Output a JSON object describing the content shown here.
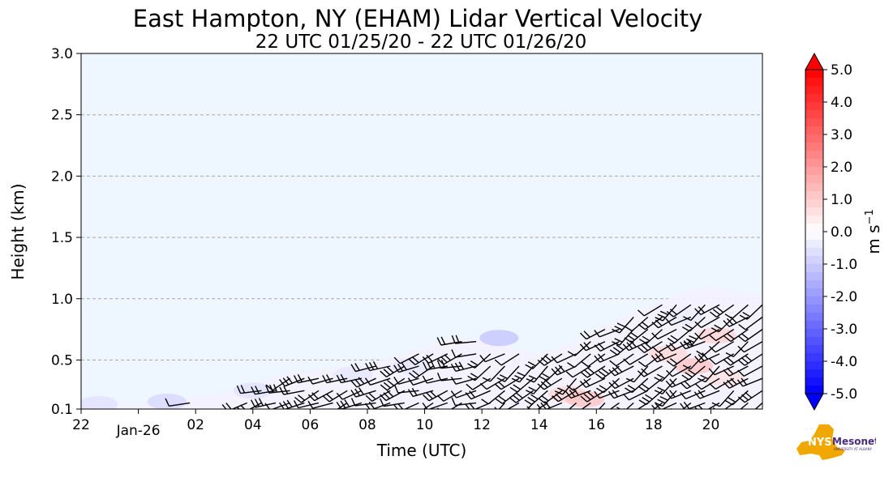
{
  "chart_data": {
    "type": "heatmap",
    "title": "East Hampton, NY (EHAM) Lidar Vertical Velocity",
    "subtitle": "22 UTC 01/25/20 - 22 UTC 01/26/20",
    "xlabel": "Time (UTC)",
    "ylabel": "Height (km)",
    "x_ticks": [
      {
        "hour": 0,
        "label": "22"
      },
      {
        "hour": 2,
        "label": "Jan-26",
        "offset_label": true
      },
      {
        "hour": 4,
        "label": "02"
      },
      {
        "hour": 6,
        "label": "04"
      },
      {
        "hour": 8,
        "label": "06"
      },
      {
        "hour": 10,
        "label": "08"
      },
      {
        "hour": 12,
        "label": "10"
      },
      {
        "hour": 14,
        "label": "12"
      },
      {
        "hour": 16,
        "label": "14"
      },
      {
        "hour": 18,
        "label": "16"
      },
      {
        "hour": 20,
        "label": "18"
      },
      {
        "hour": 22,
        "label": "20"
      }
    ],
    "xlim": [
      0,
      23.8
    ],
    "y_ticks": [
      {
        "value": 0.1,
        "label": "0.1"
      },
      {
        "value": 0.5,
        "label": "0.5"
      },
      {
        "value": 1.0,
        "label": "1.0"
      },
      {
        "value": 1.5,
        "label": "1.5"
      },
      {
        "value": 2.0,
        "label": "2.0"
      },
      {
        "value": 2.5,
        "label": "2.5"
      },
      {
        "value": 3.0,
        "label": "3.0"
      }
    ],
    "ylim": [
      0.1,
      3.0
    ],
    "grid": true,
    "colorbar": {
      "label": "m s",
      "label_sup": "−1",
      "range": [
        -5.0,
        5.0
      ],
      "levels": 40,
      "ticks": [
        "5.0",
        "4.0",
        "3.0",
        "2.0",
        "1.0",
        "0.0",
        "-1.0",
        "-2.0",
        "-3.0",
        "-4.0",
        "-5.0"
      ],
      "min_color": "#0000ff",
      "mid_color": "#ffffff",
      "max_color": "#ff0000"
    },
    "background_color": "#eef6ff",
    "data_top_profile": [
      [
        0.0,
        0.16
      ],
      [
        1.0,
        0.15
      ],
      [
        2.0,
        0.14
      ],
      [
        3.0,
        0.17
      ],
      [
        4.0,
        0.2
      ],
      [
        5.0,
        0.23
      ],
      [
        6.0,
        0.3
      ],
      [
        7.0,
        0.38
      ],
      [
        8.0,
        0.42
      ],
      [
        9.0,
        0.44
      ],
      [
        10.0,
        0.47
      ],
      [
        11.0,
        0.53
      ],
      [
        12.0,
        0.6
      ],
      [
        13.0,
        0.68
      ],
      [
        14.0,
        0.68
      ],
      [
        15.0,
        0.6
      ],
      [
        16.0,
        0.55
      ],
      [
        17.0,
        0.62
      ],
      [
        18.0,
        0.75
      ],
      [
        19.0,
        0.85
      ],
      [
        20.0,
        0.95
      ],
      [
        21.0,
        1.05
      ],
      [
        22.0,
        1.1
      ],
      [
        23.0,
        1.05
      ],
      [
        23.8,
        1.02
      ]
    ],
    "velocity_blobs": [
      {
        "t": 0.6,
        "h": 0.14,
        "v": -0.6
      },
      {
        "t": 3.0,
        "h": 0.16,
        "v": -0.8
      },
      {
        "t": 6.0,
        "h": 0.25,
        "v": -0.6
      },
      {
        "t": 9.5,
        "h": 0.38,
        "v": -0.5
      },
      {
        "t": 11.5,
        "h": 0.45,
        "v": -0.5
      },
      {
        "t": 14.6,
        "h": 0.68,
        "v": -1.2
      },
      {
        "t": 17.0,
        "h": 0.22,
        "v": 0.8
      },
      {
        "t": 17.6,
        "h": 0.18,
        "v": 1.2
      },
      {
        "t": 20.5,
        "h": 0.55,
        "v": 0.8
      },
      {
        "t": 21.4,
        "h": 0.45,
        "v": 1.2
      },
      {
        "t": 22.2,
        "h": 0.7,
        "v": 0.9
      },
      {
        "t": 21.0,
        "h": 0.85,
        "v": -0.4
      },
      {
        "t": 22.5,
        "h": 0.35,
        "v": 0.6
      }
    ],
    "wind_barbs": {
      "heights": [
        0.15,
        0.25,
        0.35,
        0.45,
        0.55,
        0.65,
        0.75,
        0.85,
        0.95
      ],
      "time_step": 0.5,
      "barb_color": "#000000"
    }
  },
  "logo": {
    "brand_text": "NYS",
    "name_text": "Mesonet",
    "tagline": "UNIVERSITY AT ALBANY",
    "state_color": "#f0a800",
    "text_color": "#4a2a7a"
  }
}
